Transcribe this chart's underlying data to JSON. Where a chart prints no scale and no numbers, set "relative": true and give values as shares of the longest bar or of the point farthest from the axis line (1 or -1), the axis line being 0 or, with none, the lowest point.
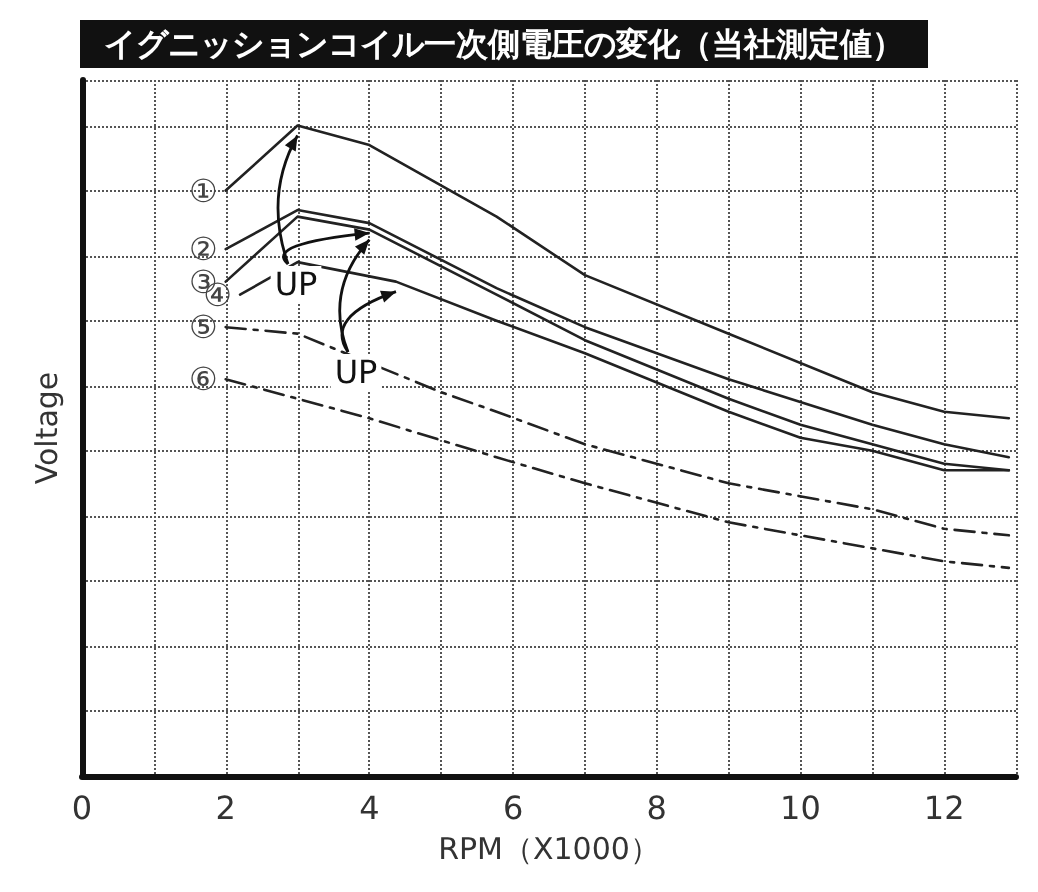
{
  "chart_data": {
    "type": "line",
    "title": "イグニッションコイル一次側電圧の変化（当社測定値）",
    "xlabel": "RPM（X1000）",
    "ylabel": "Voltage",
    "relative": true,
    "xlim": [
      0,
      13
    ],
    "xticks": [
      0,
      {
        "value": 1,
        "label": null
      },
      2,
      {
        "value": 3,
        "label": null
      },
      4,
      {
        "value": 5,
        "label": null
      },
      6,
      {
        "value": 7,
        "label": null
      },
      8,
      {
        "value": 9,
        "label": null
      },
      10,
      {
        "value": 11,
        "label": null
      },
      12,
      {
        "value": 13,
        "label": null
      }
    ],
    "grid": true,
    "marker": "none",
    "series": [
      {
        "name": "①",
        "color": "#222222",
        "line_style": "solid",
        "x": [
          2,
          3,
          4,
          5.77,
          7,
          9,
          11,
          12,
          12.9
        ],
        "values": [
          0.9,
          1,
          0.97,
          0.86,
          0.77,
          0.68,
          0.59,
          0.56,
          0.55
        ]
      },
      {
        "name": "②",
        "color": "#222222",
        "line_style": "solid",
        "x": [
          2,
          3,
          4,
          5.77,
          7,
          9,
          11,
          12,
          12.9
        ],
        "values": [
          0.81,
          0.87,
          0.85,
          0.75,
          0.69,
          0.61,
          0.54,
          0.51,
          0.49
        ]
      },
      {
        "name": "③",
        "color": "#222222",
        "line_style": "solid",
        "x": [
          2,
          3,
          4,
          5.77,
          7,
          9,
          10,
          11,
          12,
          12.9
        ],
        "values": [
          0.76,
          0.86,
          0.84,
          0.74,
          0.67,
          0.58,
          0.54,
          0.51,
          0.48,
          0.47
        ]
      },
      {
        "name": "④",
        "color": "#222222",
        "line_style": "solid",
        "x": [
          2.2,
          3,
          4.37,
          5.77,
          7,
          9,
          10,
          11,
          12,
          12.9
        ],
        "values": [
          0.74,
          0.79,
          0.76,
          0.7,
          0.65,
          0.56,
          0.52,
          0.5,
          0.47,
          0.47
        ]
      },
      {
        "name": "⑤",
        "color": "#222222",
        "line_style": "dashed",
        "x": [
          2,
          3,
          5,
          5.77,
          7,
          9,
          11,
          12,
          12.9
        ],
        "values": [
          0.69,
          0.68,
          0.59,
          0.56,
          0.51,
          0.45,
          0.41,
          0.38,
          0.37
        ]
      },
      {
        "name": "⑥",
        "color": "#222222",
        "line_style": "dashed",
        "x": [
          2,
          3,
          4,
          5.77,
          7,
          9,
          10,
          11,
          12,
          12.9
        ],
        "values": [
          0.61,
          0.58,
          0.55,
          0.49,
          0.45,
          0.39,
          0.37,
          0.35,
          0.33,
          0.32
        ]
      }
    ],
    "annotations": [
      "UP",
      "UP"
    ]
  }
}
